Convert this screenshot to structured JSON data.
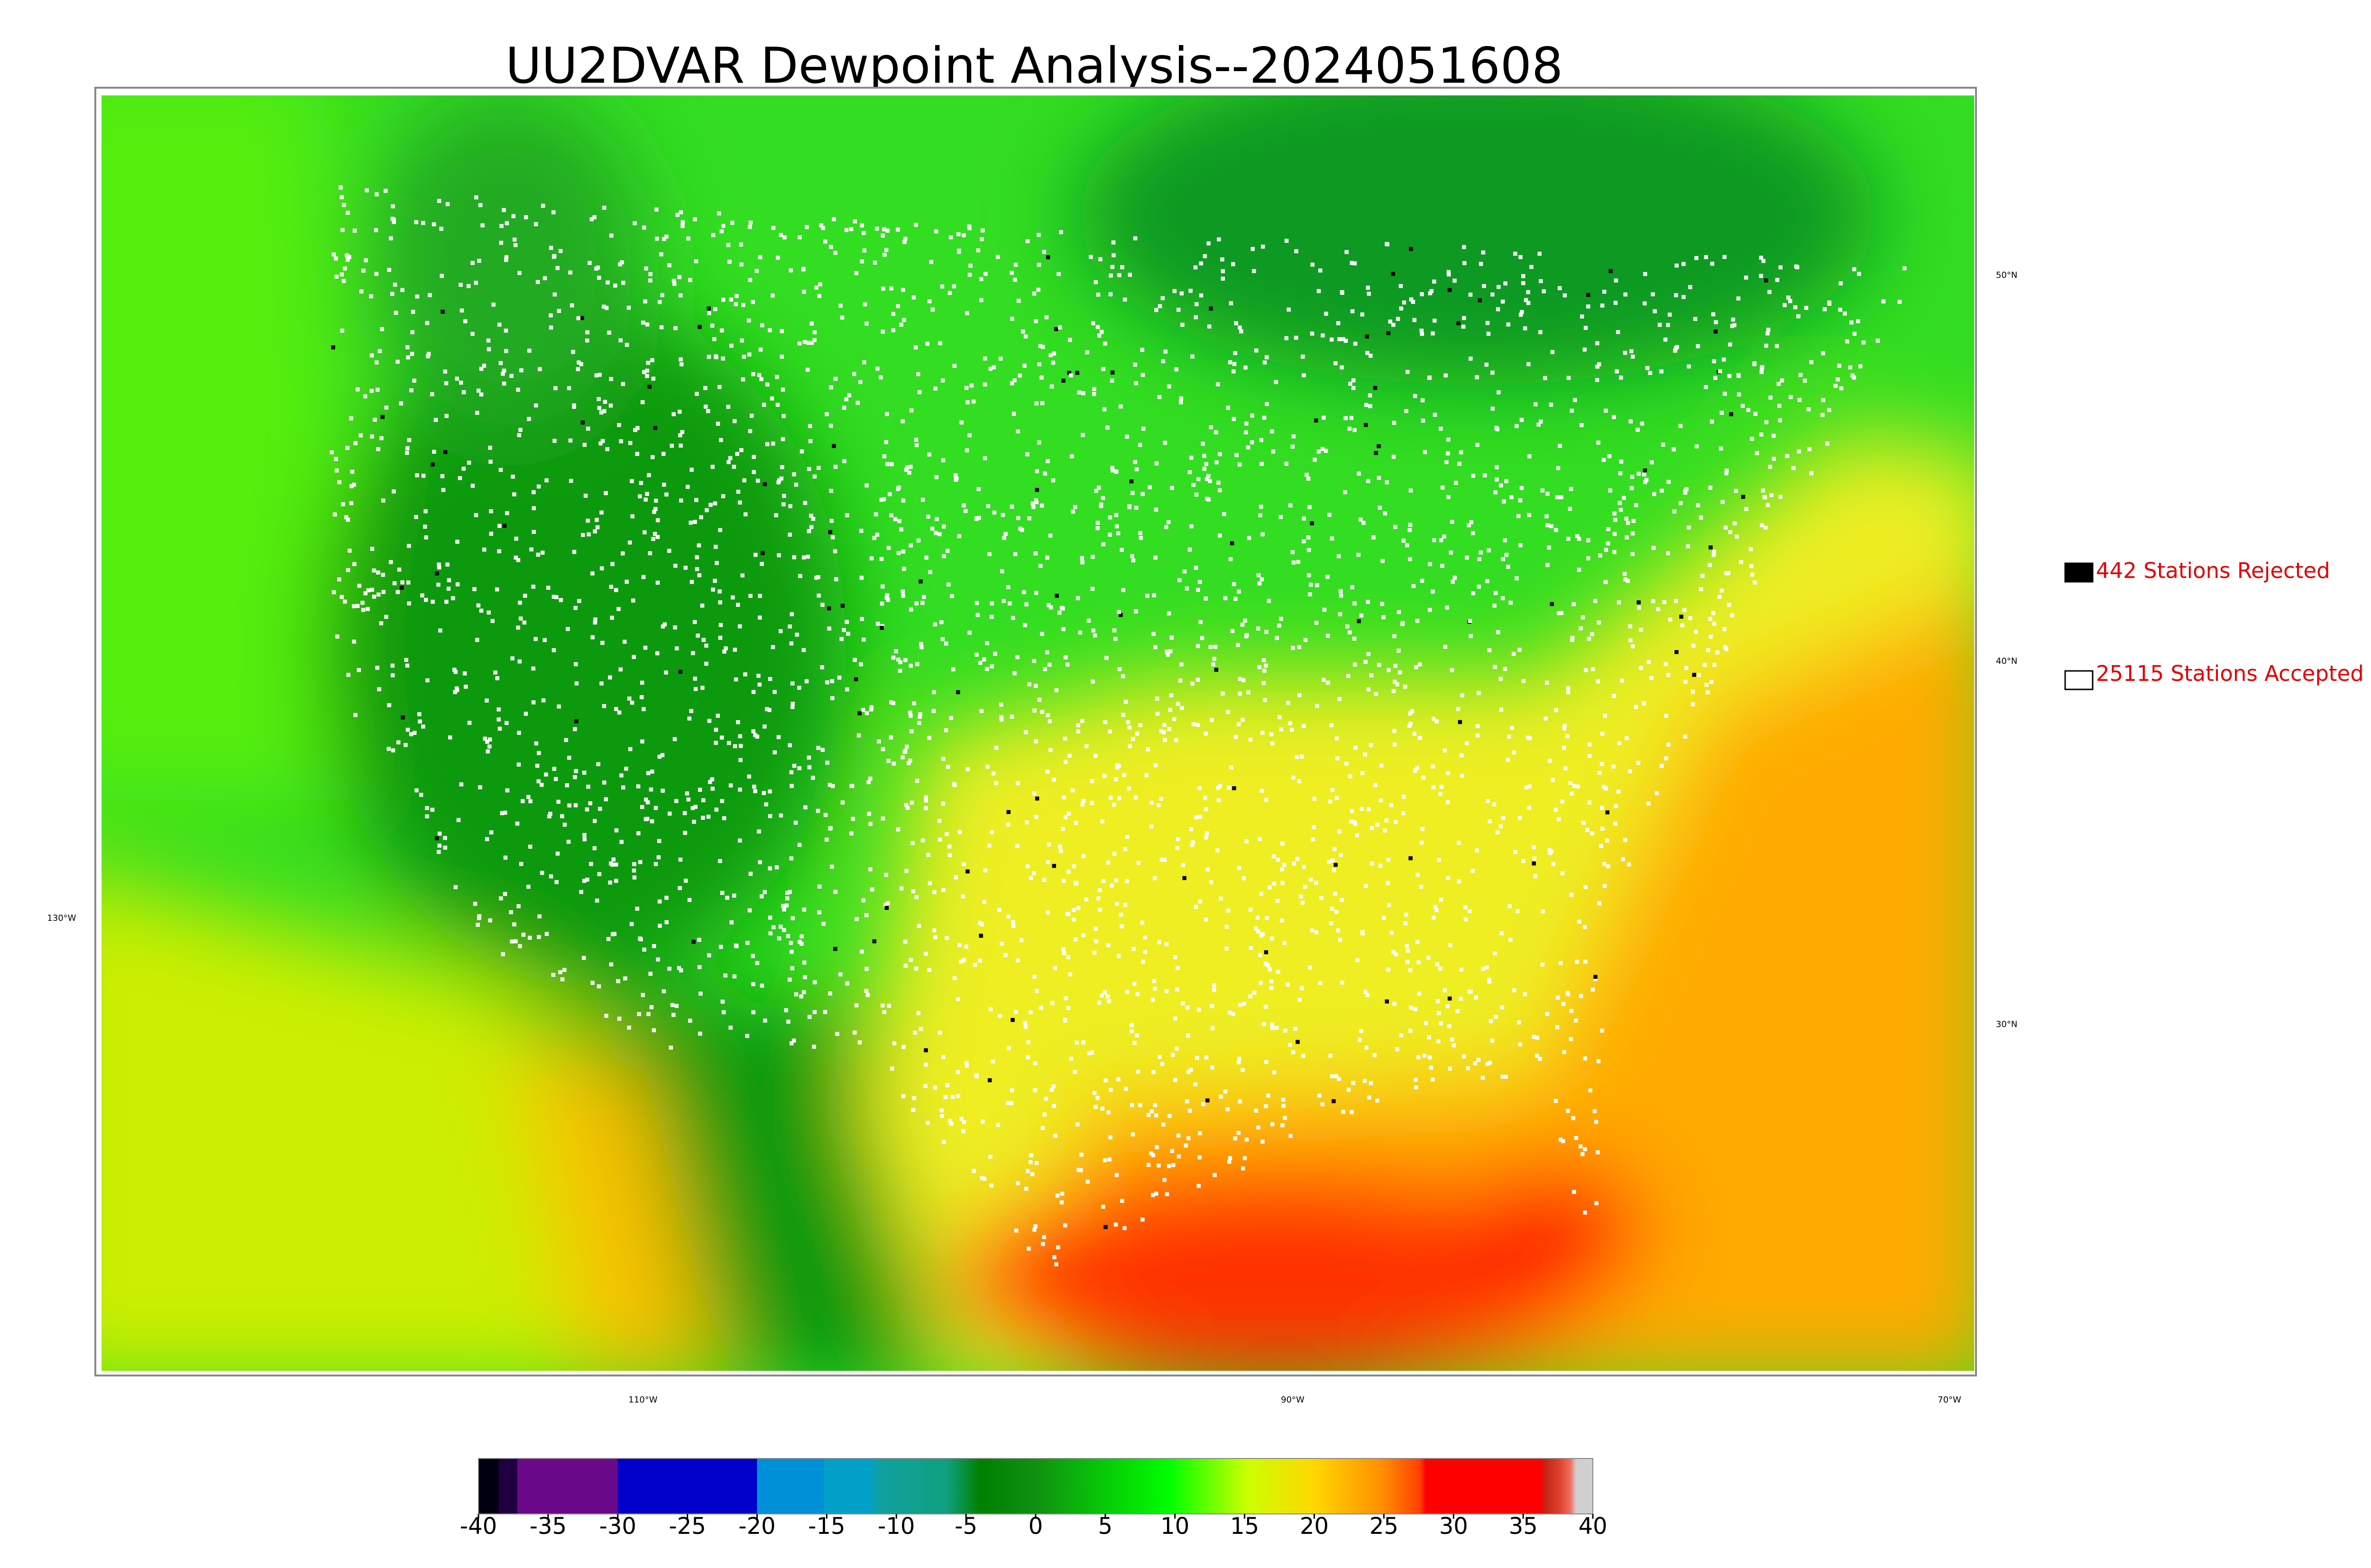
{
  "title": "UU2DVAR Dewpoint Analysis--2024051608",
  "legend": [
    {
      "label": "442 Stations Rejected"
    },
    {
      "label": "25115 Stations Accepted"
    }
  ],
  "latitude_labels": [
    "50°N",
    "40°N",
    "30°N"
  ],
  "longitude_labels": [
    "130°W",
    "110°W",
    "90°W",
    "70°W"
  ],
  "colorbar": {
    "ticks": [
      -40,
      -35,
      -30,
      -25,
      -20,
      -15,
      -10,
      -5,
      0,
      5,
      10,
      15,
      20,
      25,
      30,
      35,
      40
    ]
  }
}
